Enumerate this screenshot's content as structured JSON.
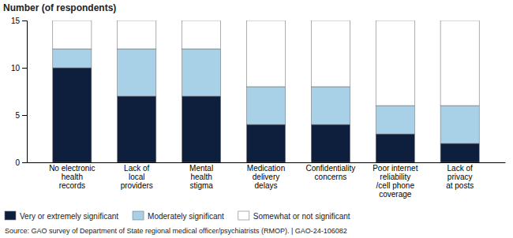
{
  "chart_data": {
    "type": "bar",
    "stacked": true,
    "ylabel": "Number (of respondents)",
    "categories": [
      "No electronic\nhealth\nrecords",
      "Lack of\nlocal\nproviders",
      "Mental\nhealth\nstigma",
      "Medication\ndelivery\ndelays",
      "Confidentiality\nconcerns",
      "Poor internet\nreliability\n/cell phone\ncoverage",
      "Lack of\nprivacy\nat posts"
    ],
    "series": [
      {
        "name": "Very or extremely significant",
        "color": "#0d1f3c",
        "values": [
          10,
          7,
          7,
          4,
          4,
          3,
          2
        ]
      },
      {
        "name": "Moderately significant",
        "color": "#a8d0e6",
        "values": [
          2,
          5,
          5,
          4,
          4,
          3,
          4
        ]
      },
      {
        "name": "Somewhat or not significant",
        "color": "#ffffff",
        "values": [
          3,
          3,
          3,
          7,
          7,
          9,
          9
        ]
      }
    ],
    "ylim": [
      0,
      15
    ],
    "yticks": [
      0,
      5,
      10,
      15
    ],
    "grid": false,
    "legend": "bottom",
    "annotations": [
      "Source: GAO survey of Department of State regional medical officer/psychiatrists (RMOP).  |  GAO-24-106082"
    ]
  }
}
